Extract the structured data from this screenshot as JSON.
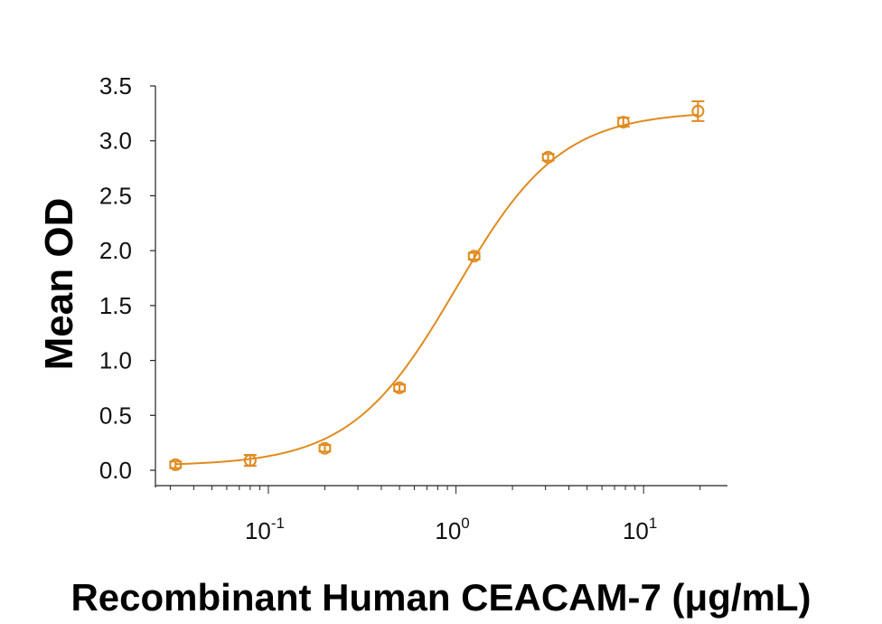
{
  "chart_data": {
    "type": "scatter",
    "xlabel": "Recombinant Human CEACAM-7 (μg/mL)",
    "ylabel": "Mean OD",
    "x_scale": "log",
    "xlim": [
      0.025,
      28
    ],
    "ylim": [
      0,
      3.5
    ],
    "x_ticks": [
      {
        "value": 0.1,
        "base": "10",
        "exp": "-1"
      },
      {
        "value": 1,
        "base": "10",
        "exp": "0"
      },
      {
        "value": 10,
        "base": "10",
        "exp": "1"
      }
    ],
    "y_ticks": [
      "0.0",
      "0.5",
      "1.0",
      "1.5",
      "2.0",
      "2.5",
      "3.0",
      "3.5"
    ],
    "grid": false,
    "color": "#E08A1E",
    "series": [
      {
        "points": [
          {
            "x": 0.032,
            "y": 0.05,
            "err": 0.03
          },
          {
            "x": 0.08,
            "y": 0.09,
            "err": 0.05
          },
          {
            "x": 0.2,
            "y": 0.2,
            "err": 0.03
          },
          {
            "x": 0.5,
            "y": 0.75,
            "err": 0.03
          },
          {
            "x": 1.25,
            "y": 1.95,
            "err": 0.03
          },
          {
            "x": 3.1,
            "y": 2.85,
            "err": 0.03
          },
          {
            "x": 7.8,
            "y": 3.17,
            "err": 0.04
          },
          {
            "x": 19.5,
            "y": 3.27,
            "err": 0.09
          }
        ],
        "fit": {
          "bottom": 0.04,
          "top": 3.27,
          "ec50": 1.0,
          "hill": 1.55
        }
      }
    ]
  }
}
